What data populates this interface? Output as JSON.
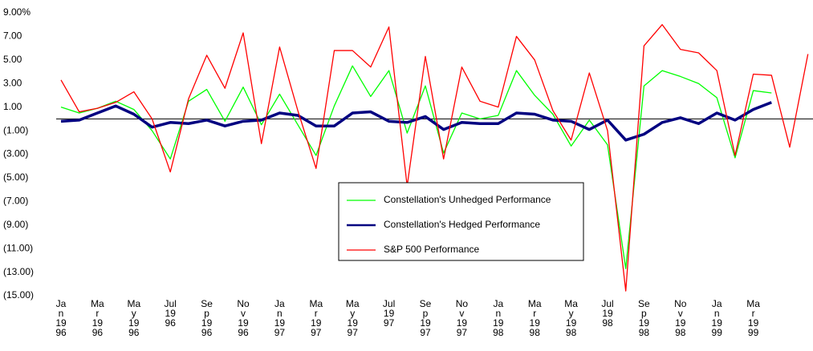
{
  "chart_data": {
    "type": "line",
    "categories": [
      "Jan 1996",
      null,
      "Mar 1996",
      null,
      "May 1996",
      null,
      "Jul 1996",
      null,
      "Sep 1996",
      null,
      "Nov 1996",
      null,
      "Jan 1997",
      null,
      "Mar 1997",
      null,
      "May 1997",
      null,
      "Jul 1997",
      null,
      "Sep 1997",
      null,
      "Nov 1997",
      null,
      "Jan 1998",
      null,
      "Mar 1998",
      null,
      "May 1998",
      null,
      "Jul 1998",
      null,
      "Sep 1998",
      null,
      "Nov 1998",
      null,
      "Jan 1999",
      null,
      "Mar 1999",
      null,
      null,
      null
    ],
    "series": [
      {
        "name": "Constellation's Unhedged Performance",
        "color": "#00ff00",
        "width": 1.3,
        "values": [
          1.0,
          0.5,
          0.9,
          1.5,
          0.8,
          -1.0,
          -3.4,
          1.5,
          2.5,
          -0.2,
          2.7,
          -0.5,
          2.1,
          -0.5,
          -3.1,
          1.1,
          4.5,
          1.9,
          4.1,
          -1.2,
          2.8,
          -2.9,
          0.5,
          0.0,
          0.3,
          4.1,
          2.0,
          0.4,
          -2.3,
          -0.1,
          -2.2,
          -12.7,
          2.8,
          4.1,
          3.6,
          3.0,
          1.8,
          -3.3,
          2.4,
          2.2,
          null,
          null
        ]
      },
      {
        "name": "Constellation's Hedged Performance",
        "color": "#000080",
        "width": 3.5,
        "values": [
          -0.2,
          -0.1,
          0.5,
          1.1,
          0.4,
          -0.7,
          -0.3,
          -0.4,
          -0.1,
          -0.6,
          -0.2,
          -0.1,
          0.5,
          0.3,
          -0.6,
          -0.6,
          0.5,
          0.6,
          -0.2,
          -0.3,
          0.2,
          -0.9,
          -0.3,
          -0.4,
          -0.4,
          0.5,
          0.4,
          -0.1,
          -0.2,
          -0.9,
          -0.1,
          -1.8,
          -1.3,
          -0.3,
          0.1,
          -0.4,
          0.5,
          -0.1,
          0.8,
          1.4,
          null,
          null
        ]
      },
      {
        "name": "S&P 500 Performance",
        "color": "#ff0000",
        "width": 1.3,
        "values": [
          3.3,
          0.6,
          0.9,
          1.4,
          2.3,
          0.0,
          -4.5,
          1.7,
          5.4,
          2.6,
          7.3,
          -2.1,
          6.1,
          0.7,
          -4.2,
          5.8,
          5.8,
          4.4,
          7.8,
          -5.7,
          5.3,
          -3.4,
          4.4,
          1.5,
          1.0,
          7.0,
          5.0,
          0.7,
          -1.8,
          3.9,
          -1.0,
          -14.6,
          6.2,
          8.0,
          5.9,
          5.6,
          4.1,
          -3.1,
          3.8,
          3.7,
          -2.4,
          5.5
        ]
      }
    ],
    "ylim": [
      -15,
      9
    ],
    "yticks": [
      {
        "value": 9,
        "label": "9.00%"
      },
      {
        "value": 7,
        "label": "7.00"
      },
      {
        "value": 5,
        "label": "5.00"
      },
      {
        "value": 3,
        "label": "3.00"
      },
      {
        "value": 1,
        "label": "1.00"
      },
      {
        "value": -1,
        "label": "(1.00)"
      },
      {
        "value": -3,
        "label": "(3.00)"
      },
      {
        "value": -5,
        "label": "(5.00)"
      },
      {
        "value": -7,
        "label": "(7.00)"
      },
      {
        "value": -9,
        "label": "(9.00)"
      },
      {
        "value": -11,
        "label": "(11.00)"
      },
      {
        "value": -13,
        "label": "(13.00)"
      },
      {
        "value": -15,
        "label": "(15.00)"
      }
    ],
    "grid": false
  }
}
